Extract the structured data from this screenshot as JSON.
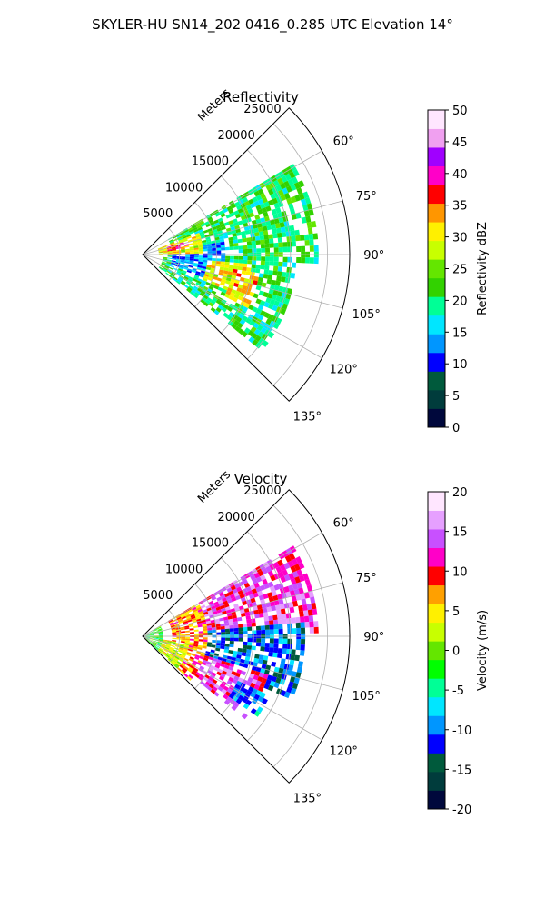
{
  "figure": {
    "title": "SKYLER-HU  SN14_202  0416_0.285 UTC Elevation 14°"
  },
  "chart_data": [
    {
      "type": "heatmap",
      "panel": "polar-sector",
      "title": "Reflectivity",
      "rlabel": "Meters",
      "r_ticks": [
        "5000",
        "10000",
        "15000",
        "20000",
        "25000"
      ],
      "r_tick_values": [
        5000,
        10000,
        15000,
        20000,
        25000
      ],
      "rlim": [
        0,
        28000
      ],
      "theta_ticks": [
        "60°",
        "75°",
        "90°",
        "105°",
        "120°",
        "135°"
      ],
      "theta_tick_values": [
        60,
        75,
        90,
        105,
        120,
        135
      ],
      "thetalim": [
        45,
        135
      ],
      "grid": true,
      "colorbar": {
        "label": "Reflectivity dBZ",
        "ticks": [
          "0",
          "5",
          "10",
          "15",
          "20",
          "25",
          "30",
          "35",
          "40",
          "45",
          "50"
        ],
        "tick_values": [
          0,
          5,
          10,
          15,
          20,
          25,
          30,
          35,
          40,
          45,
          50
        ],
        "range": [
          0,
          50
        ]
      },
      "colormap": [
        "#00083c",
        "#003c3c",
        "#005a3c",
        "#0000ff",
        "#0096ff",
        "#00e6ff",
        "#00ff96",
        "#32d200",
        "#64e600",
        "#c8ff00",
        "#fff000",
        "#ff9600",
        "#ff0000",
        "#ff00c8",
        "#a000ff",
        "#f0a0f0",
        "#ffe6ff"
      ],
      "regions": [
        {
          "theta": [
            60,
            92
          ],
          "r": [
            4000,
            24000
          ],
          "value": 21
        },
        {
          "theta": [
            92,
            128
          ],
          "r": [
            3000,
            21000
          ],
          "value": 20
        },
        {
          "theta": [
            82,
            110
          ],
          "r": [
            4000,
            11000
          ],
          "value": 13
        },
        {
          "theta": [
            70,
            88
          ],
          "r": [
            2000,
            8000
          ],
          "value": 30
        },
        {
          "theta": [
            74,
            82
          ],
          "r": [
            3500,
            6500
          ],
          "value": 36
        },
        {
          "theta": [
            95,
            112
          ],
          "r": [
            9000,
            15000
          ],
          "value": 30
        },
        {
          "theta": [
            100,
            116
          ],
          "r": [
            12500,
            16000
          ],
          "value": 32
        }
      ]
    },
    {
      "type": "heatmap",
      "panel": "polar-sector",
      "title": "Velocity",
      "rlabel": "Meters",
      "r_ticks": [
        "5000",
        "10000",
        "15000",
        "20000",
        "25000"
      ],
      "r_tick_values": [
        5000,
        10000,
        15000,
        20000,
        25000
      ],
      "rlim": [
        0,
        28000
      ],
      "theta_ticks": [
        "60°",
        "75°",
        "90°",
        "105°",
        "120°",
        "135°"
      ],
      "theta_tick_values": [
        60,
        75,
        90,
        105,
        120,
        135
      ],
      "thetalim": [
        45,
        135
      ],
      "grid": true,
      "colorbar": {
        "label": "Velocity (m/s)",
        "ticks": [
          "-20",
          "-15",
          "-10",
          "-5",
          "0",
          "5",
          "10",
          "15",
          "20"
        ],
        "tick_values": [
          -20,
          -15,
          -10,
          -5,
          0,
          5,
          10,
          15,
          20
        ],
        "range": [
          -20,
          20
        ]
      },
      "colormap": [
        "#00083c",
        "#003c3c",
        "#005a3c",
        "#0000ff",
        "#0096ff",
        "#00e6ff",
        "#00ff96",
        "#00ff00",
        "#64e600",
        "#c8ff00",
        "#fff000",
        "#ffa000",
        "#ff0000",
        "#ff00c8",
        "#c850ff",
        "#e6a0ff",
        "#ffe6ff"
      ],
      "regions": [
        {
          "theta": [
            60,
            88
          ],
          "r": [
            5000,
            24000
          ],
          "value": 13
        },
        {
          "theta": [
            86,
            112
          ],
          "r": [
            7000,
            22000
          ],
          "value": -11
        },
        {
          "theta": [
            108,
            128
          ],
          "r": [
            7000,
            18000
          ],
          "value": 13
        },
        {
          "theta": [
            60,
            132
          ],
          "r": [
            4000,
            8500
          ],
          "value": 8
        },
        {
          "theta": [
            100,
            132
          ],
          "r": [
            2000,
            6500
          ],
          "value": 3
        },
        {
          "theta": [
            60,
            132
          ],
          "r": [
            0,
            3000
          ],
          "value": -2
        },
        {
          "theta": [
            115,
            125
          ],
          "r": [
            14000,
            19000
          ],
          "value": -9
        }
      ]
    }
  ]
}
